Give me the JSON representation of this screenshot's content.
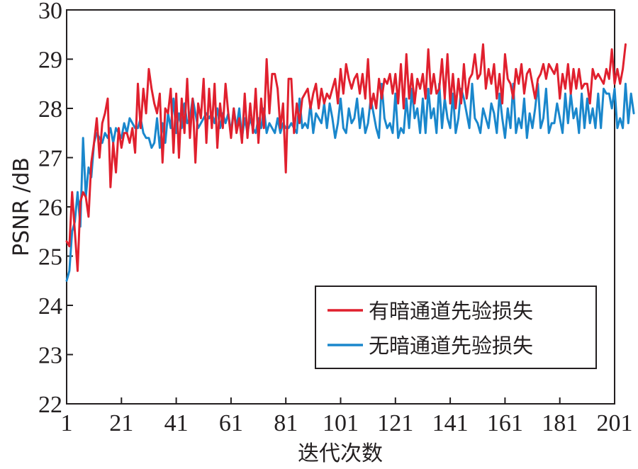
{
  "chart_data": {
    "type": "line",
    "title": "",
    "xlabel": "迭代次数",
    "ylabel": "PSNR /dB",
    "xlim": [
      1,
      201
    ],
    "ylim": [
      22,
      30
    ],
    "x_ticks": [
      "1",
      "21",
      "41",
      "61",
      "81",
      "101",
      "121",
      "141",
      "161",
      "181",
      "201"
    ],
    "y_ticks": [
      "22",
      "23",
      "24",
      "25",
      "26",
      "27",
      "28",
      "29",
      "30"
    ],
    "grid": false,
    "legend_position": "lower-right",
    "series": [
      {
        "name": "有暗通道先验损失",
        "color": "#e0202e",
        "values": [
          25.3,
          25.2,
          26.3,
          25.5,
          24.7,
          26.1,
          26.3,
          26.2,
          25.8,
          26.9,
          27.3,
          27.8,
          27.0,
          27.7,
          27.9,
          28.2,
          26.4,
          27.3,
          26.7,
          27.6,
          27.2,
          27.5,
          27.5,
          27.3,
          27.6,
          27.1,
          28.5,
          27.6,
          28.4,
          27.9,
          28.8,
          28.4,
          28.1,
          27.9,
          28.3,
          26.9,
          28.0,
          27.9,
          28.4,
          27.1,
          28.3,
          27.0,
          28.2,
          27.5,
          28.6,
          27.4,
          28.2,
          26.9,
          28.1,
          27.8,
          28.6,
          27.3,
          28.4,
          27.6,
          28.5,
          27.2,
          28.1,
          27.6,
          28.5,
          27.9,
          27.4,
          28.0,
          27.5,
          27.8,
          27.3,
          28.3,
          27.4,
          28.1,
          27.5,
          28.4,
          27.3,
          28.2,
          27.6,
          29.0,
          27.9,
          28.7,
          28.7,
          28.4,
          27.6,
          28.1,
          26.7,
          28.6,
          28.6,
          27.5,
          28.1,
          27.7,
          28.2,
          28.3,
          28.4,
          28.0,
          28.3,
          28.5,
          28.0,
          28.4,
          28.1,
          28.3,
          28.2,
          28.4,
          28.6,
          28.1,
          28.8,
          28.3,
          28.9,
          28.6,
          28.4,
          28.6,
          28.7,
          28.3,
          28.7,
          28.2,
          29.0,
          28.0,
          28.3,
          28.0,
          28.6,
          28.2,
          28.6,
          28.5,
          28.7,
          28.3,
          28.7,
          28.1,
          28.9,
          28.0,
          29.1,
          28.2,
          28.7,
          28.1,
          28.6,
          28.4,
          28.7,
          28.2,
          29.2,
          28.3,
          28.7,
          28.3,
          28.4,
          29.0,
          28.2,
          29.1,
          28.1,
          28.7,
          28.0,
          28.6,
          28.1,
          28.9,
          28.2,
          28.6,
          28.7,
          29.1,
          28.6,
          28.7,
          29.3,
          28.4,
          28.8,
          28.5,
          28.9,
          28.2,
          28.7,
          28.1,
          29.1,
          28.6,
          28.5,
          28.2,
          28.8,
          28.5,
          28.9,
          28.3,
          28.7,
          28.8,
          28.5,
          28.2,
          28.6,
          28.7,
          28.9,
          28.6,
          28.9,
          28.8,
          28.7,
          28.9,
          28.2,
          28.7,
          28.4,
          28.9,
          28.3,
          28.8,
          28.4,
          28.8,
          28.4,
          28.5,
          28.5,
          28.1,
          28.8,
          28.6,
          28.7,
          28.6,
          28.5,
          28.8,
          28.6,
          29.2,
          28.5,
          28.8,
          28.5,
          28.8,
          29.3
        ]
      },
      {
        "name": "无暗通道先验损失",
        "color": "#1a87cc",
        "values": [
          24.5,
          24.7,
          25.5,
          25.7,
          26.3,
          25.6,
          27.4,
          26.2,
          26.8,
          26.6,
          27.3,
          27.5,
          27.4,
          27.3,
          27.5,
          27.4,
          27.6,
          27.3,
          27.6,
          27.5,
          27.4,
          27.7,
          27.5,
          27.8,
          27.7,
          27.6,
          27.6,
          27.8,
          27.5,
          27.4,
          27.4,
          27.2,
          27.3,
          27.8,
          27.2,
          27.7,
          27.3,
          27.9,
          27.6,
          28.2,
          27.5,
          27.9,
          27.6,
          28.1,
          27.7,
          27.8,
          28.2,
          27.9,
          27.6,
          27.7,
          27.8,
          27.9,
          27.8,
          27.9,
          27.7,
          28.0,
          27.6,
          27.9,
          27.7,
          27.9,
          27.5,
          28.0,
          27.6,
          28.0,
          27.4,
          27.8,
          27.5,
          27.8,
          27.6,
          27.5,
          27.8,
          27.6,
          28.0,
          27.5,
          27.7,
          27.6,
          27.5,
          27.8,
          27.5,
          27.7,
          27.6,
          27.6,
          27.7,
          27.6,
          27.5,
          28.2,
          27.6,
          27.7,
          27.6,
          28.1,
          27.5,
          27.9,
          27.8,
          27.7,
          28.1,
          27.6,
          28.1,
          27.8,
          27.4,
          27.7,
          28.2,
          27.6,
          27.5,
          28.0,
          27.7,
          27.8,
          28.2,
          27.6,
          28.0,
          27.5,
          27.7,
          28.2,
          27.9,
          27.6,
          27.4,
          28.5,
          27.8,
          27.6,
          27.7,
          27.5,
          28.3,
          27.4,
          27.6,
          27.5,
          28.2,
          27.6,
          28.4,
          27.8,
          28.0,
          27.5,
          28.2,
          27.5,
          28.4,
          27.8,
          28.0,
          27.5,
          28.5,
          27.6,
          28.2,
          27.8,
          27.6,
          28.3,
          27.5,
          27.8,
          28.4,
          28.2,
          27.9,
          27.6,
          28.5,
          27.8,
          27.7,
          27.5,
          28.0,
          27.8,
          27.6,
          28.1,
          27.9,
          27.5,
          28.3,
          27.8,
          27.4,
          28.0,
          27.6,
          28.5,
          27.5,
          27.8,
          27.6,
          28.2,
          27.4,
          27.9,
          27.6,
          28.0,
          28.5,
          27.6,
          27.8,
          28.4,
          27.5,
          27.7,
          27.7,
          28.1,
          27.8,
          27.5,
          28.3,
          27.7,
          28.3,
          27.8,
          28.0,
          27.5,
          28.3,
          27.6,
          28.2,
          27.7,
          28.0,
          27.6,
          28.3,
          27.6,
          28.4,
          28.3,
          28.3,
          28.0,
          28.4,
          27.6,
          27.8,
          27.6,
          28.5,
          27.7,
          28.3,
          27.9
        ]
      }
    ]
  }
}
